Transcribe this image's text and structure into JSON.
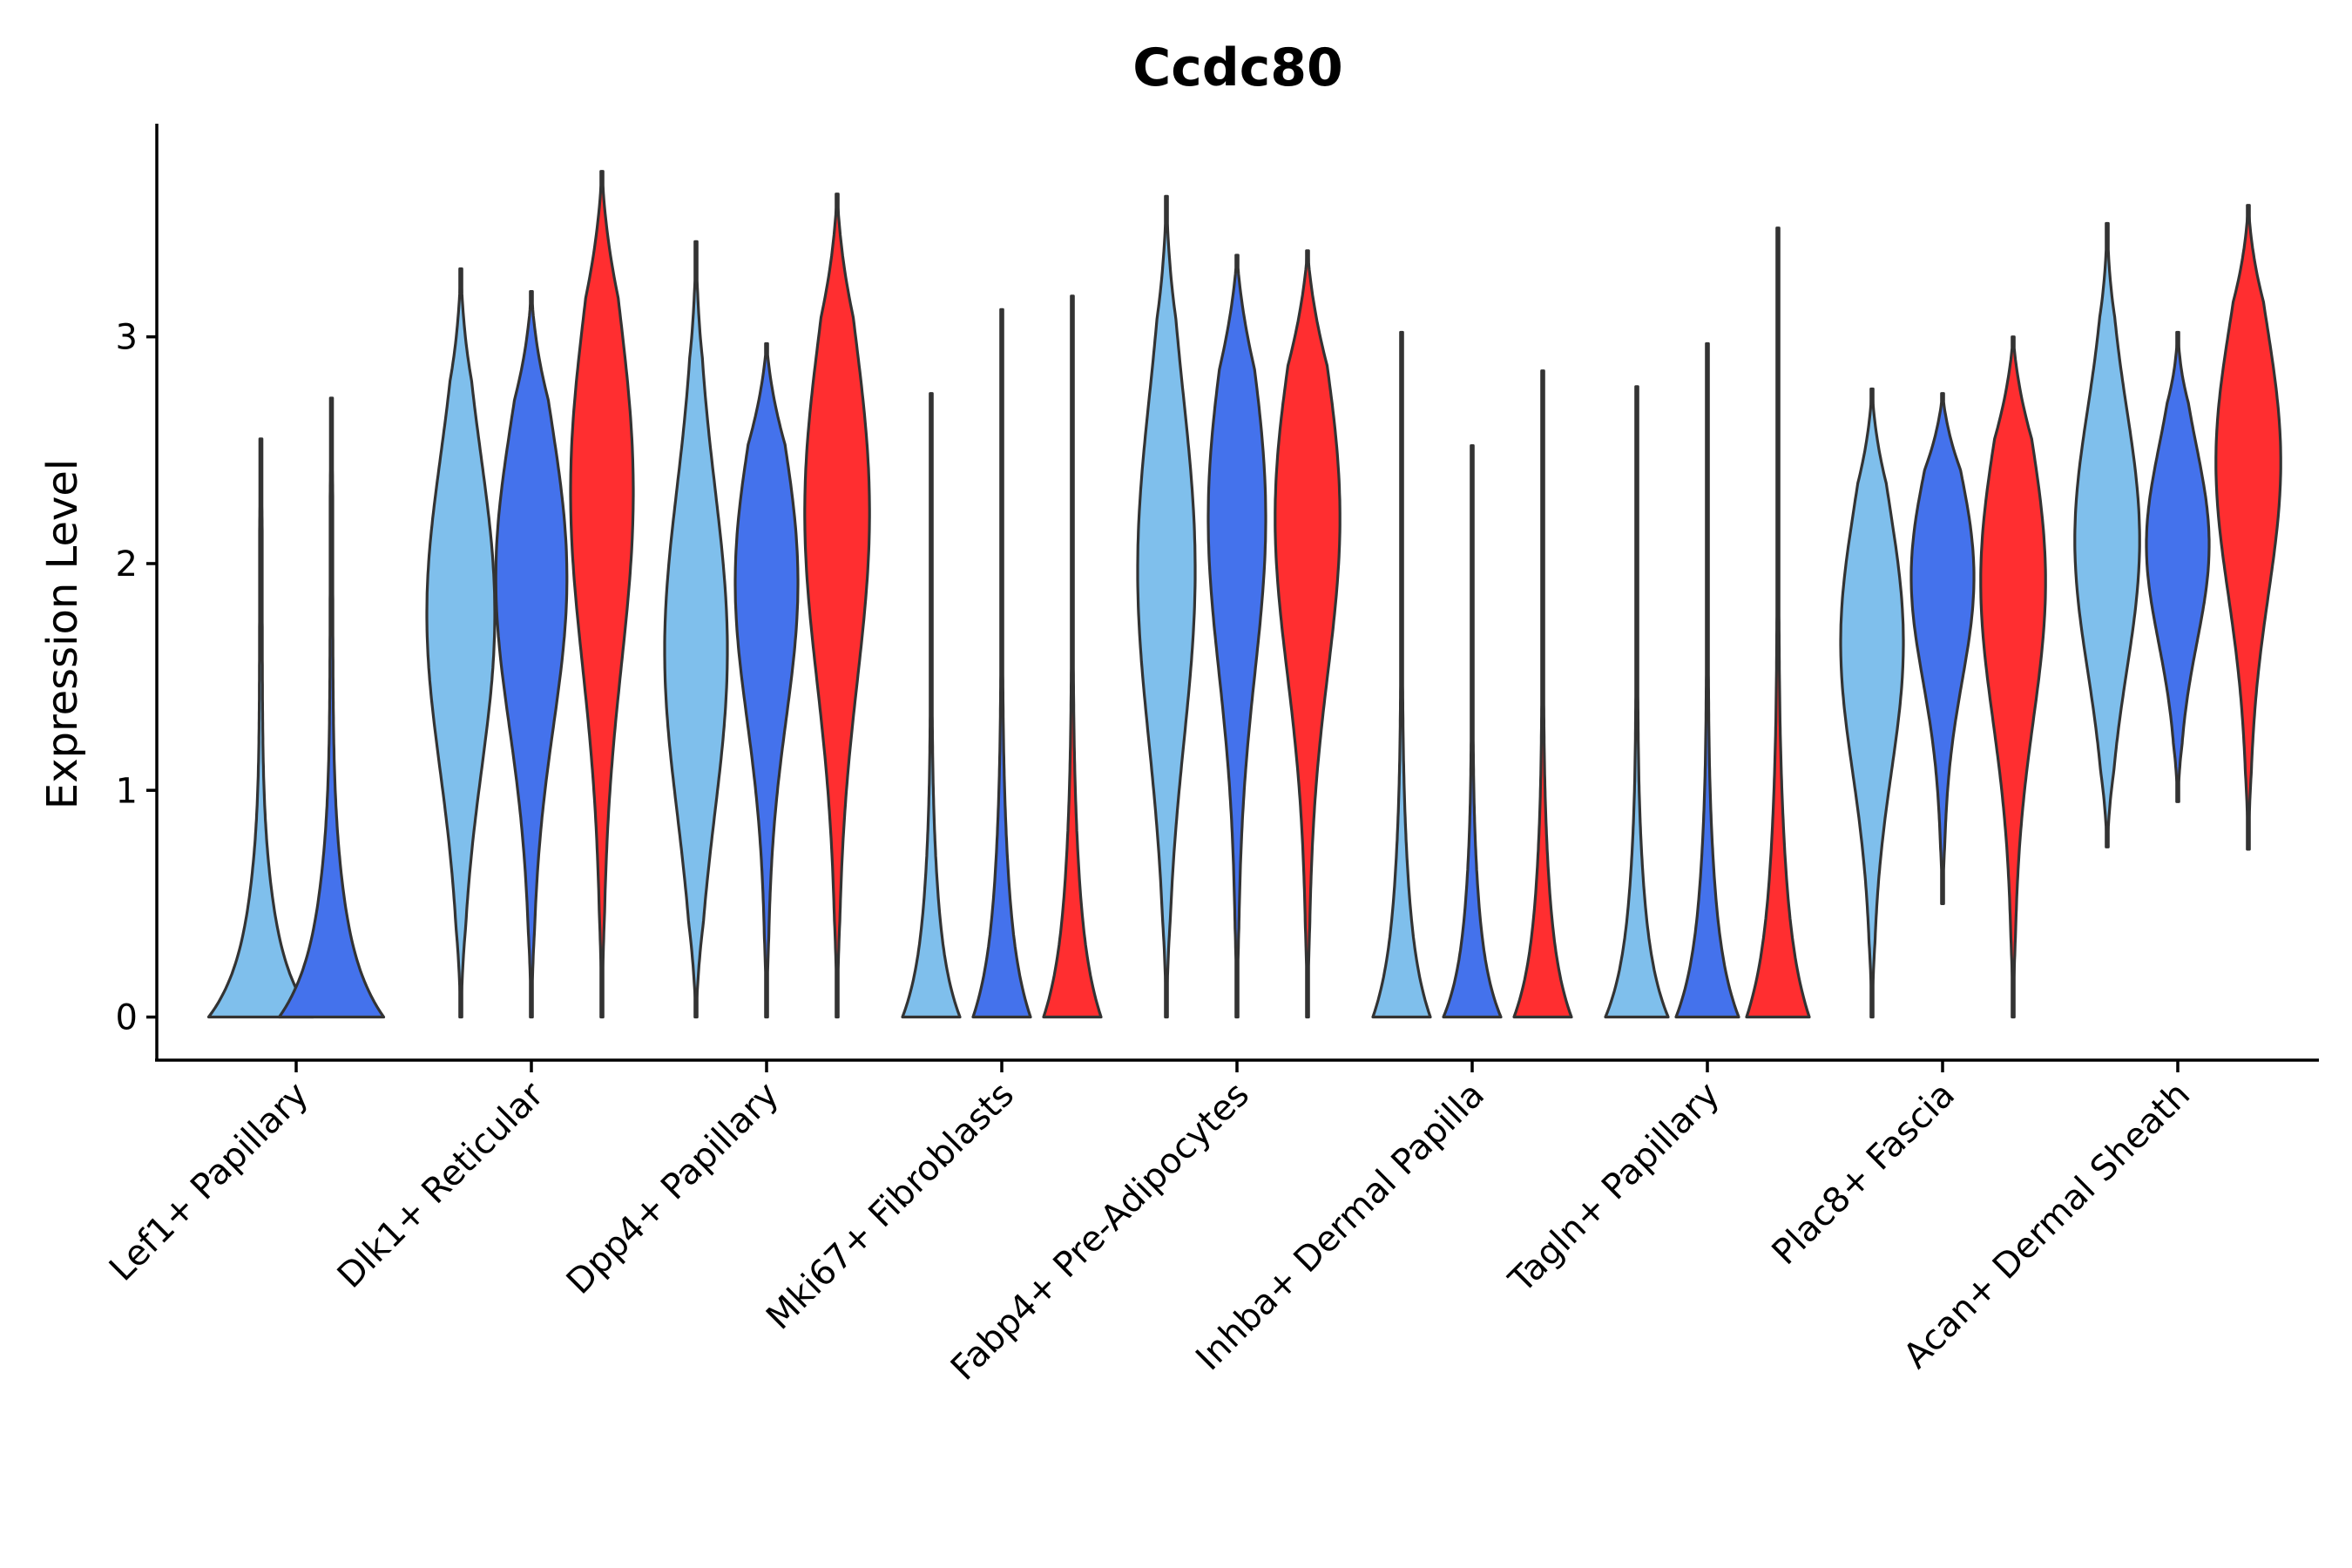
{
  "chart_data": {
    "type": "violin",
    "title": "Ccdc80",
    "xlabel": "",
    "ylabel": "Expression Level",
    "ylim": [
      -0.19,
      3.94
    ],
    "yticks": [
      0,
      1,
      2,
      3
    ],
    "series_colors": [
      "#7fbfec",
      "#4472ec",
      "#ff2e30"
    ],
    "categories": [
      {
        "label": "Lef1+ Papillary",
        "violins": [
          {
            "min": 0,
            "max": 2.55,
            "mode": 0,
            "width": 1.0
          },
          {
            "min": 0,
            "max": 2.73,
            "mode": 0,
            "width": 1.0
          }
        ]
      },
      {
        "label": "Dlk1+ Reticular",
        "violins": [
          {
            "min": 0,
            "max": 3.3,
            "mode": 1.8,
            "width": 0.65
          },
          {
            "min": 0,
            "max": 3.2,
            "mode": 2.0,
            "width": 0.68
          },
          {
            "min": 0,
            "max": 3.73,
            "mode": 2.4,
            "width": 0.6
          }
        ]
      },
      {
        "label": "Dpp4+ Papillary",
        "violins": [
          {
            "min": 0,
            "max": 3.42,
            "mode": 1.6,
            "width": 0.6
          },
          {
            "min": 0,
            "max": 2.97,
            "mode": 2.0,
            "width": 0.6
          },
          {
            "min": 0,
            "max": 3.63,
            "mode": 2.3,
            "width": 0.62
          }
        ]
      },
      {
        "label": "Mki67+ Fibroblasts",
        "violins": [
          {
            "min": 0,
            "max": 2.75,
            "mode": 0,
            "width": 0.55
          },
          {
            "min": 0,
            "max": 3.12,
            "mode": 0,
            "width": 0.55
          },
          {
            "min": 0,
            "max": 3.18,
            "mode": 0,
            "width": 0.55
          }
        ]
      },
      {
        "label": "Fabp4+ Pre-Adipocytes",
        "violins": [
          {
            "min": 0,
            "max": 3.62,
            "mode": 2.0,
            "width": 0.55
          },
          {
            "min": 0,
            "max": 3.36,
            "mode": 2.3,
            "width": 0.55
          },
          {
            "min": 0,
            "max": 3.38,
            "mode": 2.3,
            "width": 0.62
          }
        ]
      },
      {
        "label": "Inhba+ Dermal Papilla",
        "violins": [
          {
            "min": 0,
            "max": 3.02,
            "mode": 0,
            "width": 0.55
          },
          {
            "min": 0,
            "max": 2.52,
            "mode": 0,
            "width": 0.55
          },
          {
            "min": 0,
            "max": 2.85,
            "mode": 0,
            "width": 0.55
          }
        ]
      },
      {
        "label": "Tagln+ Papillary",
        "violins": [
          {
            "min": 0,
            "max": 2.78,
            "mode": 0,
            "width": 0.6
          },
          {
            "min": 0,
            "max": 2.97,
            "mode": 0,
            "width": 0.6
          },
          {
            "min": 0,
            "max": 3.48,
            "mode": 0,
            "width": 0.6
          }
        ]
      },
      {
        "label": "Plac8+ Fascia",
        "violins": [
          {
            "min": 0,
            "max": 2.77,
            "mode": 1.7,
            "width": 0.6
          },
          {
            "min": 0.5,
            "max": 2.75,
            "mode": 2.0,
            "width": 0.6
          },
          {
            "min": 0,
            "max": 3.0,
            "mode": 2.0,
            "width": 0.62
          }
        ]
      },
      {
        "label": "Acan+ Dermal Sheath",
        "violins": [
          {
            "min": 0.75,
            "max": 3.5,
            "mode": 2.1,
            "width": 0.62
          },
          {
            "min": 0.95,
            "max": 3.02,
            "mode": 2.1,
            "width": 0.6
          },
          {
            "min": 0.74,
            "max": 3.58,
            "mode": 2.5,
            "width": 0.62
          }
        ]
      }
    ]
  }
}
